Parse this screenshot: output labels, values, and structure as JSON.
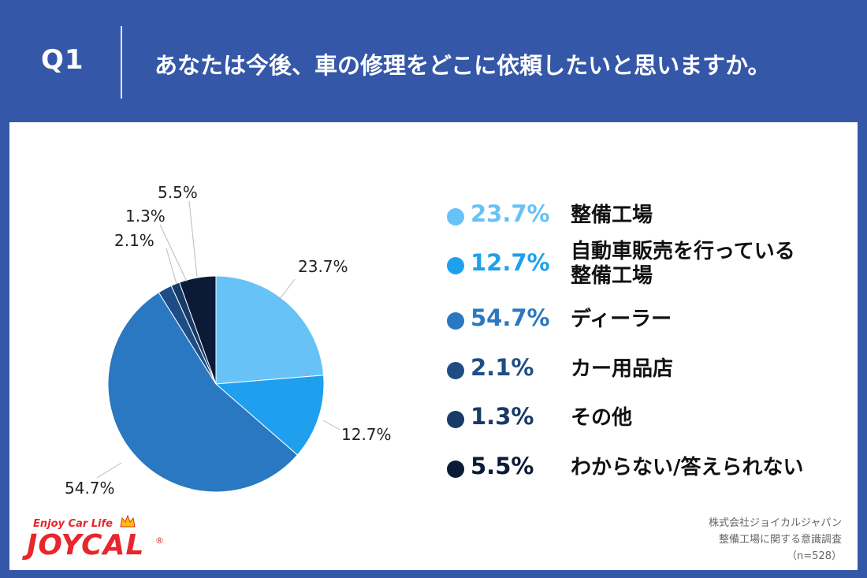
{
  "header": {
    "q_label": "Q1",
    "question": "あなたは今後、車の修理をどこに依頼したいと思いますか。"
  },
  "chart_data": {
    "type": "pie",
    "title": "あなたは今後、車の修理をどこに依頼したいと思いますか。",
    "unit": "%",
    "slices": [
      {
        "label": "整備工場",
        "value": 23.7,
        "display": "23.7%",
        "color": "#66c2f7"
      },
      {
        "label": "自動車販売を行っている整備工場",
        "value": 12.7,
        "display": "12.7%",
        "color": "#1ea0ee"
      },
      {
        "label": "ディーラー",
        "value": 54.7,
        "display": "54.7%",
        "color": "#2a78c1"
      },
      {
        "label": "カー用品店",
        "value": 2.1,
        "display": "2.1%",
        "color": "#1e4d86"
      },
      {
        "label": "その他",
        "value": 1.3,
        "display": "1.3%",
        "color": "#173a66"
      },
      {
        "label": "わからない/答えられない",
        "value": 5.5,
        "display": "5.5%",
        "color": "#0b1a36"
      }
    ]
  },
  "legend": [
    {
      "pct": "23.7%",
      "label": "整備工場"
    },
    {
      "pct": "12.7%",
      "label": "自動車販売を行っている整備工場"
    },
    {
      "pct": "54.7%",
      "label": "ディーラー"
    },
    {
      "pct": "2.1%",
      "label": "カー用品店"
    },
    {
      "pct": "1.3%",
      "label": "その他"
    },
    {
      "pct": "5.5%",
      "label": "わからない/答えられない"
    }
  ],
  "credit": {
    "company": "株式会社ジョイカルジャパン",
    "survey": "整備工場に関する意識調査",
    "sample": "（n=528）"
  },
  "logo": {
    "tagline": "Enjoy Car Life",
    "wordmark": "JOYCAL",
    "registered": "®"
  },
  "colors": {
    "background": "#3457a8",
    "panel": "#ffffff",
    "logo_red": "#e8262b"
  }
}
